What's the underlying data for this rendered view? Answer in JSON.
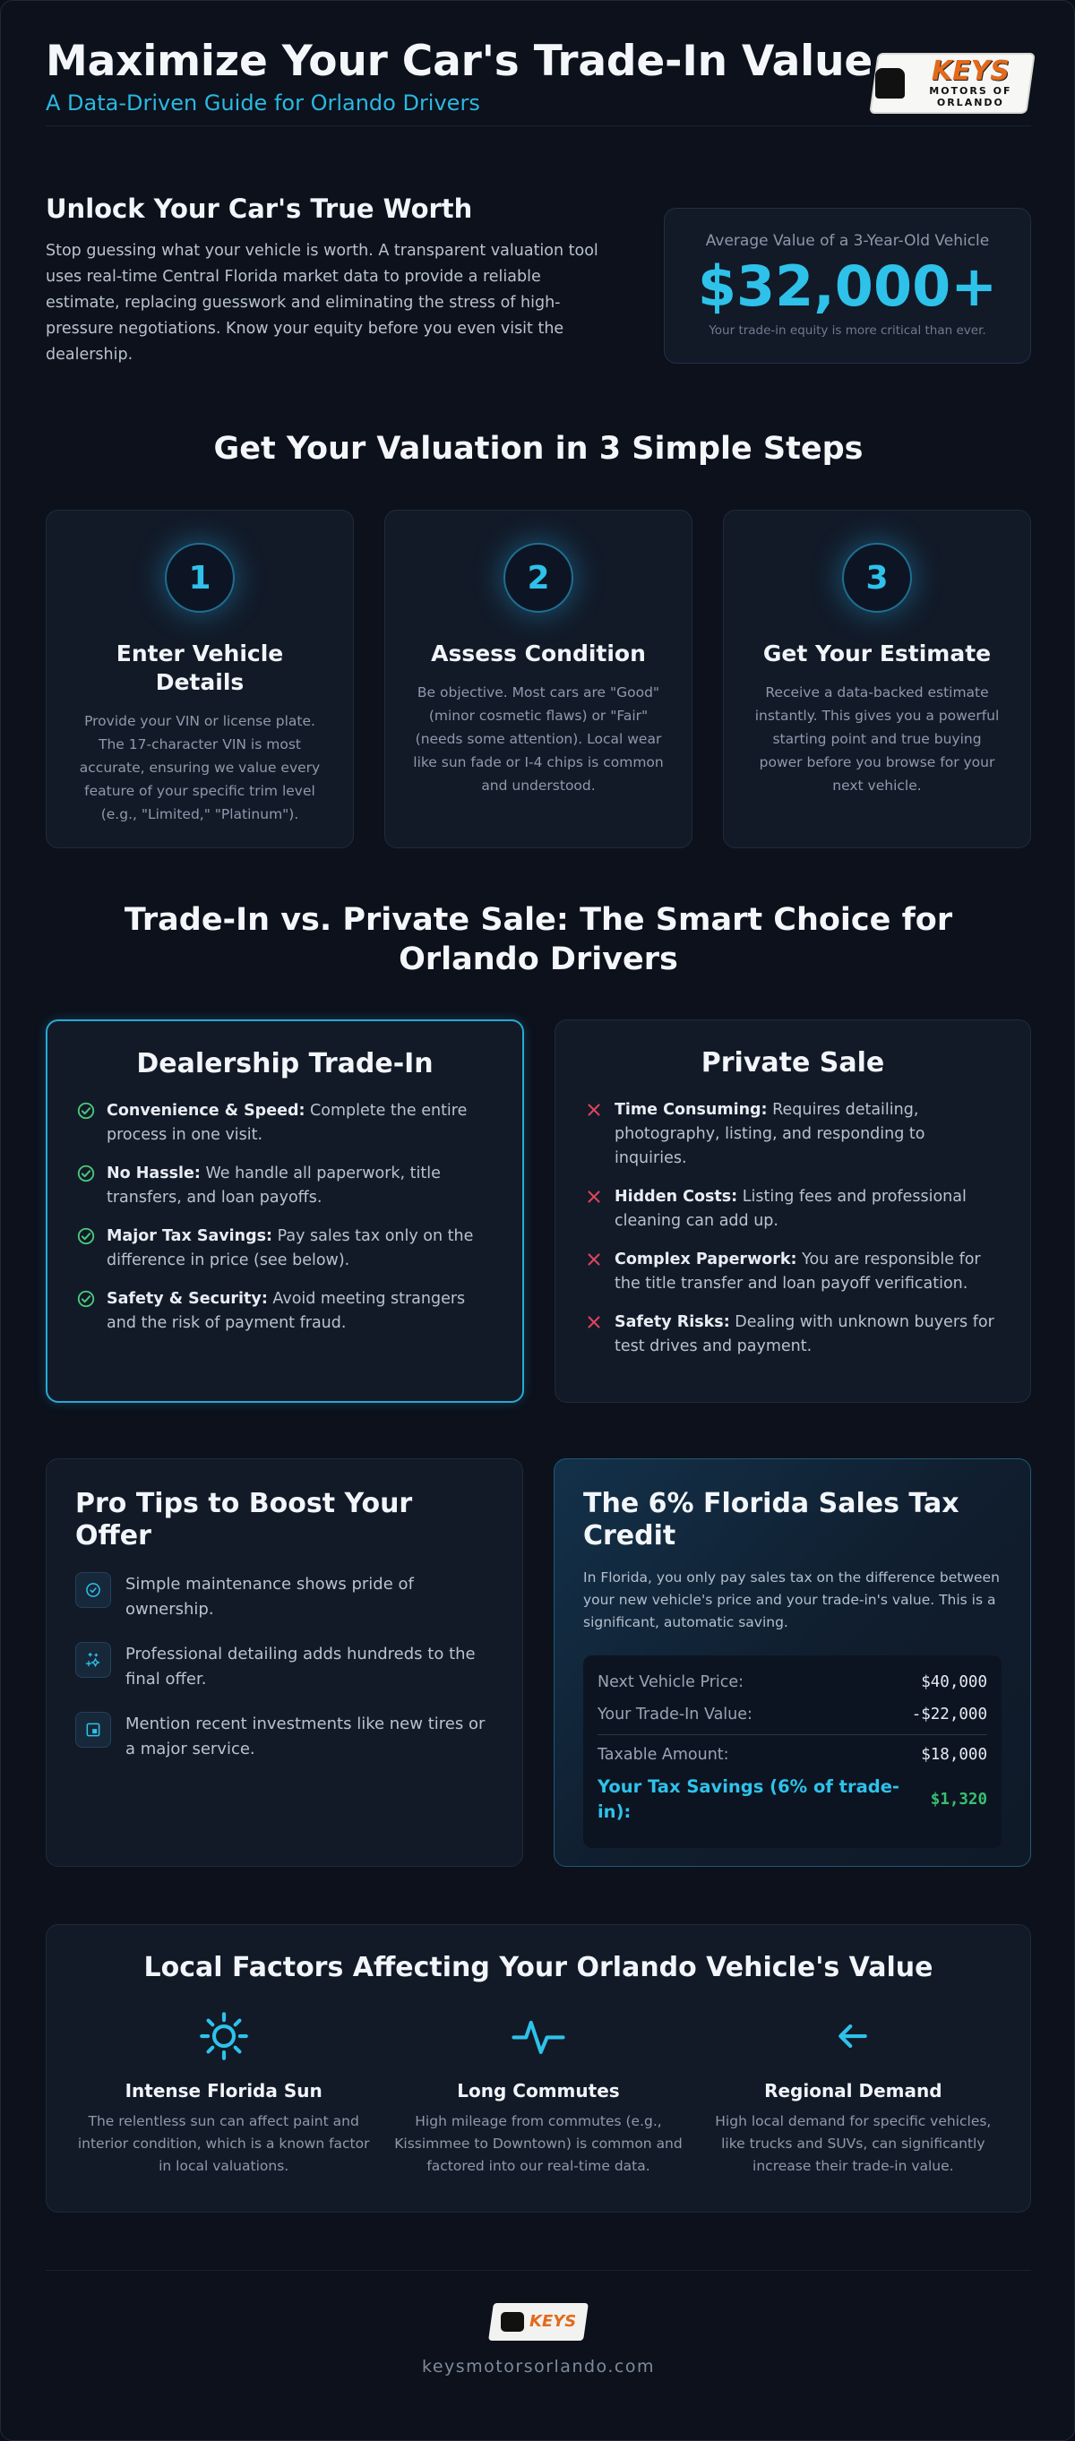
{
  "header": {
    "title": "Maximize Your Car's Trade-In Value",
    "subtitle": "A Data-Driven Guide for Orlando Drivers",
    "logo": {
      "brand": "KEYS",
      "tagline": "MOTORS OF ORLANDO"
    }
  },
  "intro": {
    "heading": "Unlock Your Car's True Worth",
    "body": "Stop guessing what your vehicle is worth. A transparent valuation tool uses real-time Central Florida market data to provide a reliable estimate, replacing guesswork and eliminating the stress of high-pressure negotiations. Know your equity before you even visit the dealership.",
    "stat_label": "Average Value of a 3-Year-Old Vehicle",
    "stat_value": "$32,000+",
    "stat_note": "Your trade-in equity is more critical than ever."
  },
  "steps": {
    "title": "Get Your Valuation in 3 Simple Steps",
    "items": [
      {
        "num": "1",
        "title": "Enter Vehicle Details",
        "body": "Provide your VIN or license plate. The 17-character VIN is most accurate, ensuring we value every feature of your specific trim level (e.g., \"Limited,\" \"Platinum\")."
      },
      {
        "num": "2",
        "title": "Assess Condition",
        "body": "Be objective. Most cars are \"Good\" (minor cosmetic flaws) or \"Fair\" (needs some attention). Local wear like sun fade or I-4 chips is common and understood."
      },
      {
        "num": "3",
        "title": "Get Your Estimate",
        "body": "Receive a data-backed estimate instantly. This gives you a powerful starting point and true buying power before you browse for your next vehicle."
      }
    ]
  },
  "compare": {
    "title": "Trade-In vs. Private Sale: The Smart Choice for Orlando Drivers",
    "trade_in": {
      "heading": "Dealership Trade-In",
      "items": [
        {
          "bold": "Convenience & Speed:",
          "text": " Complete the entire process in one visit."
        },
        {
          "bold": "No Hassle:",
          "text": " We handle all paperwork, title transfers, and loan payoffs."
        },
        {
          "bold": "Major Tax Savings:",
          "text": " Pay sales tax only on the difference in price (see below)."
        },
        {
          "bold": "Safety & Security:",
          "text": " Avoid meeting strangers and the risk of payment fraud."
        }
      ]
    },
    "private_sale": {
      "heading": "Private Sale",
      "items": [
        {
          "bold": "Time Consuming:",
          "text": " Requires detailing, photography, listing, and responding to inquiries."
        },
        {
          "bold": "Hidden Costs:",
          "text": " Listing fees and professional cleaning can add up."
        },
        {
          "bold": "Complex Paperwork:",
          "text": " You are responsible for the title transfer and loan payoff verification."
        },
        {
          "bold": "Safety Risks:",
          "text": " Dealing with unknown buyers for test drives and payment."
        }
      ]
    }
  },
  "tips": {
    "heading": "Pro Tips to Boost Your Offer",
    "items": [
      {
        "icon": "check-badge-icon",
        "text": "Simple maintenance shows pride of ownership."
      },
      {
        "icon": "sparkle-icon",
        "text": "Professional detailing adds hundreds to the final offer."
      },
      {
        "icon": "receipt-icon",
        "text": "Mention recent investments like new tires or a major service."
      }
    ]
  },
  "tax": {
    "heading": "The 6% Florida Sales Tax Credit",
    "body": "In Florida, you only pay sales tax on the difference between your new vehicle's price and your trade-in's value. This is a significant, automatic saving.",
    "rows": [
      {
        "label": "Next Vehicle Price:",
        "value": "$40,000"
      },
      {
        "label": "Your Trade-In Value:",
        "value": "-$22,000"
      }
    ],
    "taxable_label": "Taxable Amount:",
    "taxable_value": "$18,000",
    "savings_label": "Your Tax Savings (6% of trade-in):",
    "savings_value": "$1,320"
  },
  "local": {
    "heading": "Local Factors Affecting Your Orlando Vehicle's Value",
    "items": [
      {
        "icon": "sun-icon",
        "title": "Intense Florida Sun",
        "body": "The relentless sun can affect paint and interior condition, which is a known factor in local valuations."
      },
      {
        "icon": "pulse-icon",
        "title": "Long Commutes",
        "body": "High mileage from commutes (e.g., Kissimmee to Downtown) is common and factored into our real-time data."
      },
      {
        "icon": "arrow-left-icon",
        "title": "Regional Demand",
        "body": "High local demand for specific vehicles, like trucks and SUVs, can significantly increase their trade-in value."
      }
    ]
  },
  "footer": {
    "site": "keysmotorsorlando.com"
  },
  "colors": {
    "accent": "#2ec2ea",
    "good": "#4cc97a",
    "bad": "#e0455a",
    "background": "#0c111c"
  }
}
